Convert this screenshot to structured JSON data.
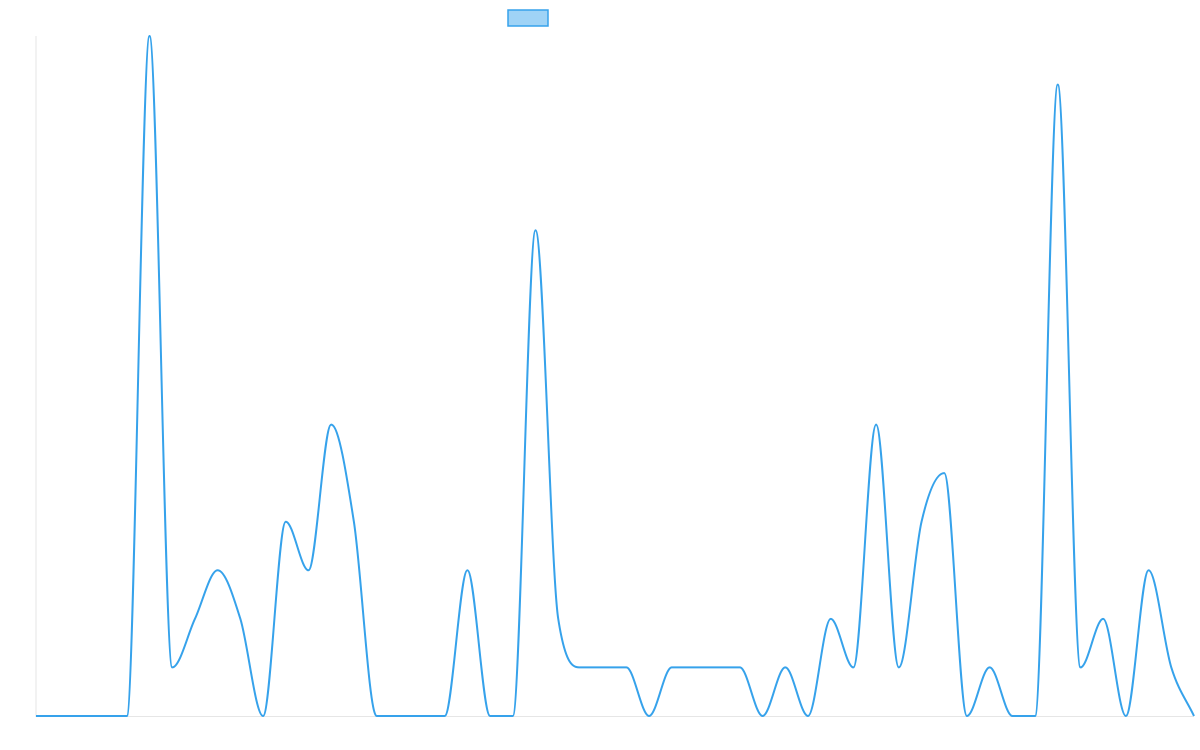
{
  "chart_data": {
    "type": "line",
    "title": "",
    "xlabel": "",
    "ylabel": "",
    "legend_position": "top-center",
    "legend_swatch_fill": "#9fd3f6",
    "line_color": "#36a2eb",
    "axis_color": "#e6e6e6",
    "grid": false,
    "ylim": [
      0,
      14
    ],
    "series": [
      {
        "name": "",
        "values": [
          0,
          0,
          0,
          0,
          0,
          14,
          1,
          2,
          3,
          2,
          0,
          4,
          3,
          6,
          4,
          0,
          0,
          0,
          0,
          3,
          0,
          0,
          10,
          2,
          1,
          1,
          1,
          0,
          1,
          1,
          1,
          1,
          0,
          1,
          0,
          2,
          1,
          6,
          1,
          4,
          5,
          0,
          1,
          0,
          0,
          13,
          1,
          2,
          0,
          3,
          1,
          0
        ]
      }
    ]
  }
}
